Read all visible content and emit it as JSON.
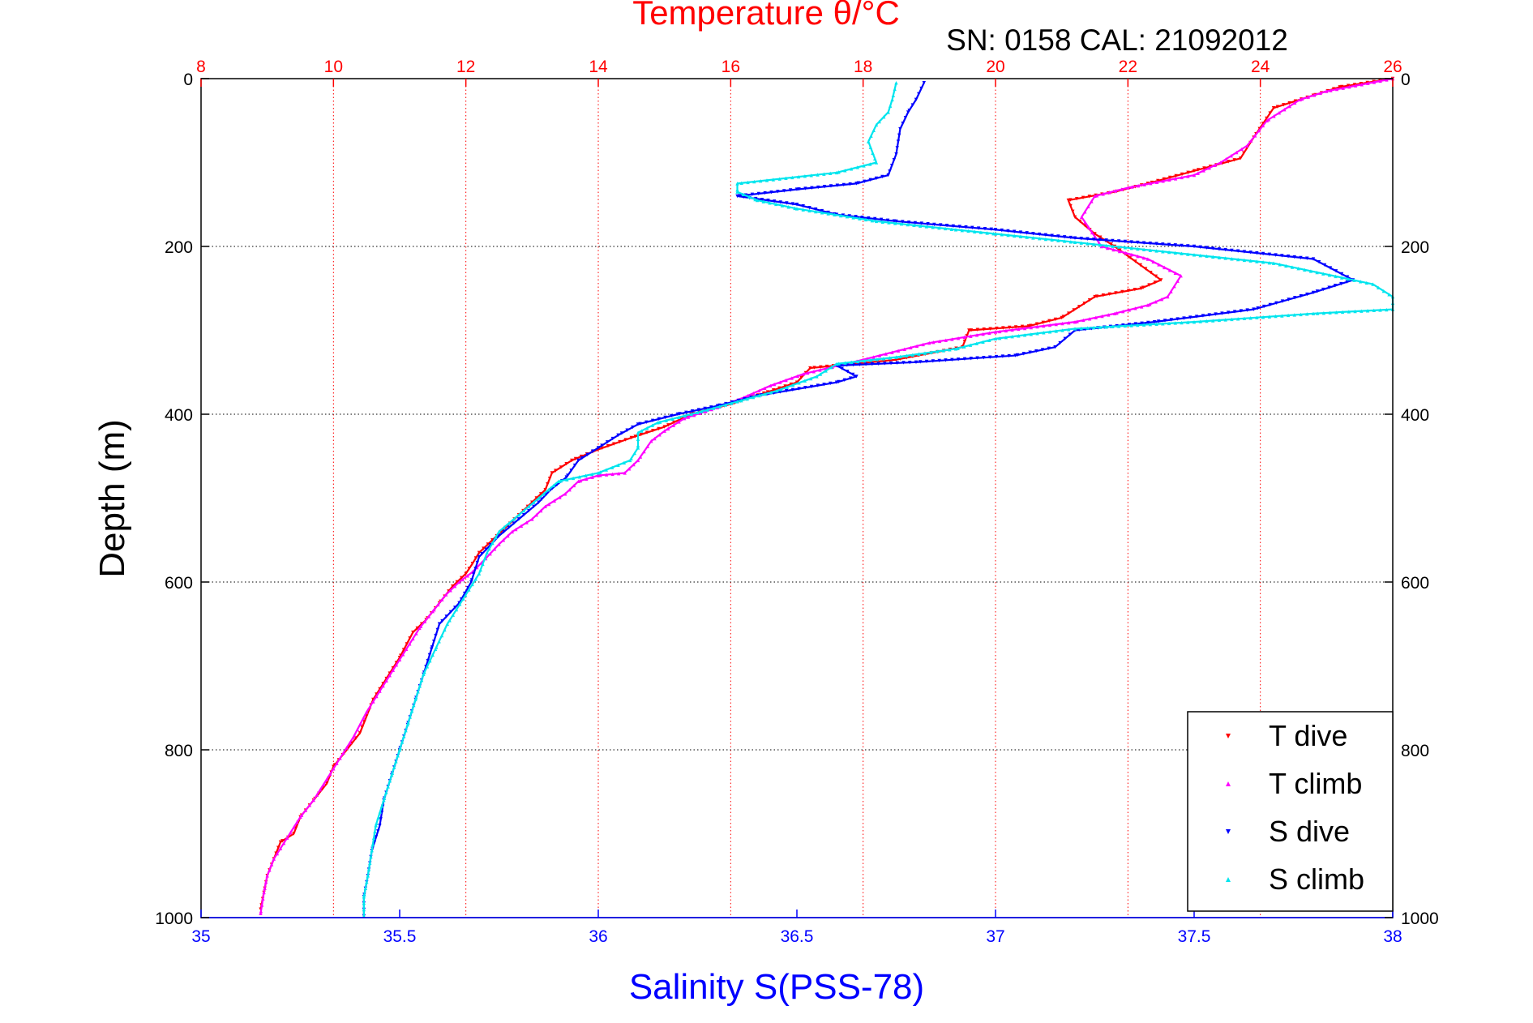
{
  "chart_data": {
    "type": "scatter",
    "title": "Temperature θ/°C",
    "subtitle": "SN: 0158  CAL: 21092012",
    "xlabel": "Salinity S(PSS-78)",
    "ylabel": "Depth (m)",
    "x_bottom": {
      "label": "Salinity S(PSS-78)",
      "range": [
        35,
        38
      ],
      "ticks": [
        35,
        35.5,
        36,
        36.5,
        37,
        37.5,
        38
      ],
      "tick_labels": [
        "35",
        "35.5",
        "36",
        "36.5",
        "37",
        "37.5",
        "38"
      ]
    },
    "x_top": {
      "label": "Temperature θ/°C",
      "range": [
        8,
        26
      ],
      "ticks": [
        8,
        10,
        12,
        14,
        16,
        18,
        20,
        22,
        24,
        26
      ],
      "tick_labels": [
        "8",
        "10",
        "12",
        "14",
        "16",
        "18",
        "20",
        "22",
        "24",
        "26"
      ]
    },
    "y": {
      "range": [
        0,
        1000
      ],
      "reversed": true,
      "ticks": [
        0,
        200,
        400,
        600,
        800,
        1000
      ],
      "tick_labels": [
        "0",
        "200",
        "400",
        "600",
        "800",
        "1000"
      ]
    },
    "grid": true,
    "legend_position": "bottom-right",
    "series": [
      {
        "name": "T dive",
        "axis": "temperature",
        "color": "#ff0000",
        "marker": "triangle-down",
        "points": [
          [
            26,
            0
          ],
          [
            25.2,
            10
          ],
          [
            24.8,
            20
          ],
          [
            24.2,
            35
          ],
          [
            23.9,
            70
          ],
          [
            23.7,
            95
          ],
          [
            23.0,
            110
          ],
          [
            22.3,
            125
          ],
          [
            21.8,
            135
          ],
          [
            21.1,
            145
          ],
          [
            21.2,
            165
          ],
          [
            21.5,
            185
          ],
          [
            21.8,
            200
          ],
          [
            22.5,
            240
          ],
          [
            22.2,
            250
          ],
          [
            21.5,
            260
          ],
          [
            21.0,
            285
          ],
          [
            20.5,
            295
          ],
          [
            19.6,
            300
          ],
          [
            19.5,
            320
          ],
          [
            18.5,
            335
          ],
          [
            17.2,
            345
          ],
          [
            17.0,
            362
          ],
          [
            16.5,
            375
          ],
          [
            16.0,
            388
          ],
          [
            15.4,
            400
          ],
          [
            15.0,
            415
          ],
          [
            14.5,
            428
          ],
          [
            14.0,
            442
          ],
          [
            13.6,
            455
          ],
          [
            13.3,
            470
          ],
          [
            13.2,
            490
          ],
          [
            13.0,
            505
          ],
          [
            12.8,
            520
          ],
          [
            12.6,
            535
          ],
          [
            12.4,
            550
          ],
          [
            12.2,
            565
          ],
          [
            12.1,
            578
          ],
          [
            12.0,
            590
          ],
          [
            11.8,
            605
          ],
          [
            11.6,
            625
          ],
          [
            11.4,
            645
          ],
          [
            11.2,
            660
          ],
          [
            11.0,
            690
          ],
          [
            10.8,
            715
          ],
          [
            10.6,
            740
          ],
          [
            10.5,
            760
          ],
          [
            10.4,
            780
          ],
          [
            10.2,
            800
          ],
          [
            10.0,
            820
          ],
          [
            9.9,
            840
          ],
          [
            9.7,
            860
          ],
          [
            9.5,
            880
          ],
          [
            9.4,
            900
          ],
          [
            9.2,
            910
          ],
          [
            9.1,
            930
          ],
          [
            9.0,
            950
          ],
          [
            8.95,
            970
          ],
          [
            8.9,
            990
          ]
        ]
      },
      {
        "name": "T climb",
        "axis": "temperature",
        "color": "#ff00ff",
        "marker": "triangle-up",
        "points": [
          [
            26,
            0
          ],
          [
            25.0,
            15
          ],
          [
            24.6,
            25
          ],
          [
            24.1,
            50
          ],
          [
            23.8,
            80
          ],
          [
            23.4,
            100
          ],
          [
            23.0,
            115
          ],
          [
            22.0,
            130
          ],
          [
            21.5,
            140
          ],
          [
            21.3,
            165
          ],
          [
            21.6,
            200
          ],
          [
            22.3,
            215
          ],
          [
            22.8,
            235
          ],
          [
            22.6,
            260
          ],
          [
            22.3,
            270
          ],
          [
            21.8,
            280
          ],
          [
            21.2,
            290
          ],
          [
            20.0,
            302
          ],
          [
            19.0,
            315
          ],
          [
            18.0,
            335
          ],
          [
            17.1,
            352
          ],
          [
            16.6,
            366
          ],
          [
            16.2,
            380
          ],
          [
            15.8,
            392
          ],
          [
            15.3,
            405
          ],
          [
            15.0,
            420
          ],
          [
            14.8,
            432
          ],
          [
            14.6,
            455
          ],
          [
            14.4,
            470
          ],
          [
            14.0,
            473
          ],
          [
            13.7,
            480
          ],
          [
            13.5,
            495
          ],
          [
            13.2,
            510
          ],
          [
            13.0,
            525
          ],
          [
            12.7,
            540
          ],
          [
            12.5,
            555
          ],
          [
            12.3,
            572
          ],
          [
            12.1,
            588
          ],
          [
            11.9,
            600
          ],
          [
            11.7,
            615
          ],
          [
            11.5,
            635
          ],
          [
            11.3,
            655
          ],
          [
            11.1,
            680
          ],
          [
            10.9,
            705
          ],
          [
            10.7,
            730
          ],
          [
            10.5,
            755
          ],
          [
            10.3,
            785
          ],
          [
            10.1,
            810
          ],
          [
            9.9,
            835
          ],
          [
            9.7,
            860
          ],
          [
            9.5,
            880
          ],
          [
            9.3,
            905
          ],
          [
            9.1,
            930
          ],
          [
            9.0,
            950
          ],
          [
            8.95,
            970
          ],
          [
            8.9,
            995
          ]
        ]
      },
      {
        "name": "S dive",
        "axis": "salinity",
        "color": "#0000ff",
        "marker": "triangle-down",
        "points": [
          [
            36.82,
            5
          ],
          [
            36.8,
            25
          ],
          [
            36.78,
            40
          ],
          [
            36.76,
            60
          ],
          [
            36.75,
            90
          ],
          [
            36.73,
            115
          ],
          [
            36.65,
            125
          ],
          [
            36.5,
            132
          ],
          [
            36.35,
            140
          ],
          [
            36.5,
            150
          ],
          [
            36.6,
            162
          ],
          [
            36.75,
            170
          ],
          [
            37.0,
            180
          ],
          [
            37.2,
            190
          ],
          [
            37.5,
            200
          ],
          [
            37.8,
            215
          ],
          [
            37.9,
            240
          ],
          [
            37.8,
            255
          ],
          [
            37.65,
            275
          ],
          [
            37.4,
            290
          ],
          [
            37.2,
            300
          ],
          [
            37.15,
            320
          ],
          [
            37.05,
            330
          ],
          [
            36.8,
            338
          ],
          [
            36.6,
            342
          ],
          [
            36.65,
            355
          ],
          [
            36.6,
            362
          ],
          [
            36.4,
            378
          ],
          [
            36.3,
            390
          ],
          [
            36.2,
            400
          ],
          [
            36.1,
            412
          ],
          [
            36.05,
            425
          ],
          [
            36.0,
            440
          ],
          [
            35.95,
            455
          ],
          [
            35.92,
            475
          ],
          [
            35.88,
            490
          ],
          [
            35.85,
            505
          ],
          [
            35.8,
            525
          ],
          [
            35.75,
            545
          ],
          [
            35.7,
            570
          ],
          [
            35.68,
            600
          ],
          [
            35.65,
            625
          ],
          [
            35.6,
            650
          ],
          [
            35.58,
            680
          ],
          [
            35.56,
            710
          ],
          [
            35.54,
            740
          ],
          [
            35.52,
            770
          ],
          [
            35.5,
            800
          ],
          [
            35.48,
            830
          ],
          [
            35.46,
            860
          ],
          [
            35.45,
            890
          ],
          [
            35.43,
            920
          ],
          [
            35.42,
            950
          ],
          [
            35.41,
            975
          ],
          [
            35.41,
            998
          ]
        ]
      },
      {
        "name": "S climb",
        "axis": "salinity",
        "color": "#00e5ee",
        "marker": "triangle-up",
        "points": [
          [
            36.75,
            5
          ],
          [
            36.74,
            25
          ],
          [
            36.73,
            40
          ],
          [
            36.7,
            55
          ],
          [
            36.68,
            75
          ],
          [
            36.7,
            100
          ],
          [
            36.6,
            112
          ],
          [
            36.35,
            125
          ],
          [
            36.35,
            135
          ],
          [
            36.4,
            145
          ],
          [
            36.5,
            155
          ],
          [
            36.7,
            170
          ],
          [
            36.9,
            180
          ],
          [
            37.0,
            185
          ],
          [
            37.2,
            195
          ],
          [
            37.5,
            210
          ],
          [
            37.7,
            220
          ],
          [
            37.95,
            245
          ],
          [
            38.0,
            260
          ],
          [
            38.0,
            275
          ],
          [
            37.8,
            280
          ],
          [
            37.5,
            290
          ],
          [
            37.2,
            298
          ],
          [
            37.0,
            310
          ],
          [
            36.9,
            322
          ],
          [
            36.75,
            332
          ],
          [
            36.6,
            340
          ],
          [
            36.55,
            355
          ],
          [
            36.45,
            372
          ],
          [
            36.35,
            385
          ],
          [
            36.25,
            398
          ],
          [
            36.15,
            410
          ],
          [
            36.1,
            422
          ],
          [
            36.1,
            440
          ],
          [
            36.08,
            455
          ],
          [
            36.0,
            470
          ],
          [
            35.9,
            480
          ],
          [
            35.85,
            500
          ],
          [
            35.8,
            520
          ],
          [
            35.75,
            540
          ],
          [
            35.72,
            565
          ],
          [
            35.7,
            590
          ],
          [
            35.66,
            620
          ],
          [
            35.62,
            650
          ],
          [
            35.59,
            680
          ],
          [
            35.56,
            710
          ],
          [
            35.54,
            740
          ],
          [
            35.52,
            770
          ],
          [
            35.5,
            800
          ],
          [
            35.48,
            830
          ],
          [
            35.46,
            860
          ],
          [
            35.44,
            890
          ],
          [
            35.43,
            920
          ],
          [
            35.42,
            950
          ],
          [
            35.41,
            975
          ],
          [
            35.41,
            998
          ]
        ]
      }
    ]
  }
}
